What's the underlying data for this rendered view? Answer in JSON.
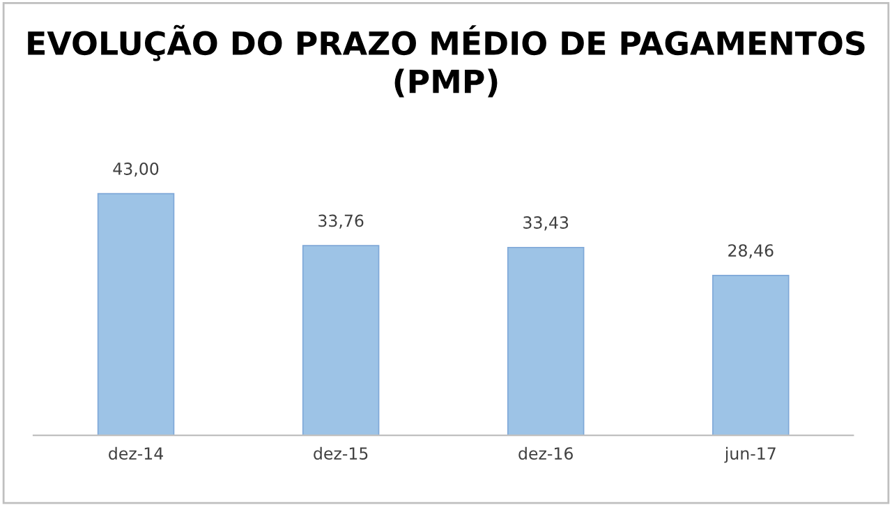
{
  "chart_data": {
    "type": "bar",
    "title": "EVOLUÇÃO DO PRAZO MÉDIO DE PAGAMENTOS (PMP)",
    "categories": [
      "dez-14",
      "dez-15",
      "dez-16",
      "jun-17"
    ],
    "values": [
      43.0,
      33.76,
      33.43,
      28.46
    ],
    "value_labels": [
      "43,00",
      "33,76",
      "33,43",
      "28,46"
    ],
    "color": "#9dc3e6",
    "grid": false,
    "legend": false
  }
}
